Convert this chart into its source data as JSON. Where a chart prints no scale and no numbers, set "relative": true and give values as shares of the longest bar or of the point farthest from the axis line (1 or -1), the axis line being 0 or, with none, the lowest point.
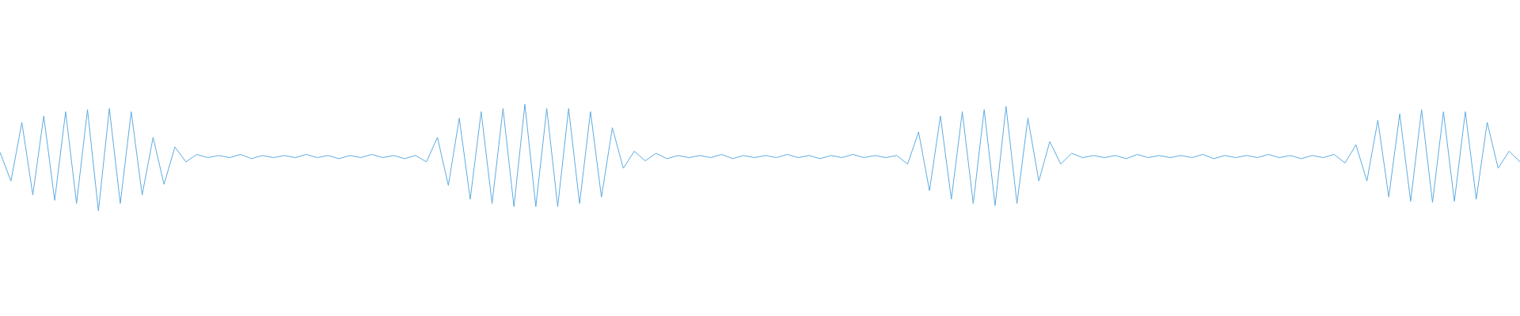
{
  "chart_data": {
    "type": "line",
    "relative": true,
    "legend": false,
    "marker": "none",
    "line_style": "solid",
    "categories": [
      null,
      null,
      null,
      null,
      null,
      null,
      null,
      null,
      null,
      null,
      null,
      null,
      null,
      null,
      null,
      null,
      null,
      null,
      null,
      null,
      null,
      null,
      null,
      null,
      null,
      null,
      null,
      null,
      null,
      null,
      null,
      null,
      null,
      null,
      null,
      null,
      null,
      null,
      null,
      null,
      null,
      null,
      null,
      null,
      null,
      null,
      null,
      null,
      null,
      null,
      null,
      null,
      null,
      null,
      null,
      null,
      null,
      null,
      null,
      null,
      null,
      null,
      null,
      null,
      null,
      null,
      null,
      null,
      null,
      null,
      null,
      null,
      null,
      null,
      null,
      null,
      null,
      null,
      null,
      null,
      null,
      null,
      null,
      null,
      null,
      null,
      null,
      null,
      null,
      null,
      null,
      null,
      null,
      null,
      null,
      null,
      null,
      null,
      null,
      null,
      null,
      null,
      null,
      null,
      null,
      null,
      null,
      null,
      null,
      null,
      null,
      null,
      null,
      null,
      null,
      null,
      null,
      null,
      null,
      null,
      null,
      null,
      null,
      null,
      null,
      null,
      null,
      null,
      null,
      null,
      null,
      null,
      null,
      null,
      null,
      null,
      null,
      null,
      null,
      null
    ],
    "series": [
      {
        "color": "#5dabe2",
        "values": [
          0.55,
          0.28,
          0.83,
          0.15,
          0.89,
          0.1,
          0.93,
          0.07,
          0.95,
          0,
          0.96,
          0.07,
          0.93,
          0.15,
          0.69,
          0.25,
          0.6,
          0.46,
          0.53,
          0.5,
          0.52,
          0.5,
          0.53,
          0.49,
          0.52,
          0.5,
          0.52,
          0.5,
          0.53,
          0.5,
          0.52,
          0.49,
          0.52,
          0.5,
          0.53,
          0.5,
          0.52,
          0.49,
          0.52,
          0.46,
          0.69,
          0.24,
          0.87,
          0.11,
          0.93,
          0.07,
          0.96,
          0.04,
          1,
          0.04,
          0.96,
          0.04,
          0.96,
          0.07,
          0.93,
          0.13,
          0.78,
          0.4,
          0.56,
          0.47,
          0.54,
          0.49,
          0.52,
          0.5,
          0.52,
          0.5,
          0.53,
          0.49,
          0.52,
          0.5,
          0.52,
          0.5,
          0.53,
          0.5,
          0.52,
          0.49,
          0.52,
          0.5,
          0.53,
          0.5,
          0.52,
          0.5,
          0.52,
          0.44,
          0.74,
          0.19,
          0.89,
          0.11,
          0.93,
          0.07,
          0.95,
          0.05,
          0.98,
          0.07,
          0.87,
          0.28,
          0.65,
          0.44,
          0.54,
          0.5,
          0.52,
          0.5,
          0.52,
          0.49,
          0.53,
          0.5,
          0.52,
          0.5,
          0.52,
          0.5,
          0.53,
          0.49,
          0.52,
          0.5,
          0.52,
          0.5,
          0.53,
          0.5,
          0.52,
          0.49,
          0.52,
          0.5,
          0.53,
          0.45,
          0.62,
          0.28,
          0.85,
          0.13,
          0.91,
          0.09,
          0.95,
          0.08,
          0.93,
          0.09,
          0.93,
          0.11,
          0.83,
          0.4,
          0.56,
          0.46
        ]
      }
    ]
  }
}
